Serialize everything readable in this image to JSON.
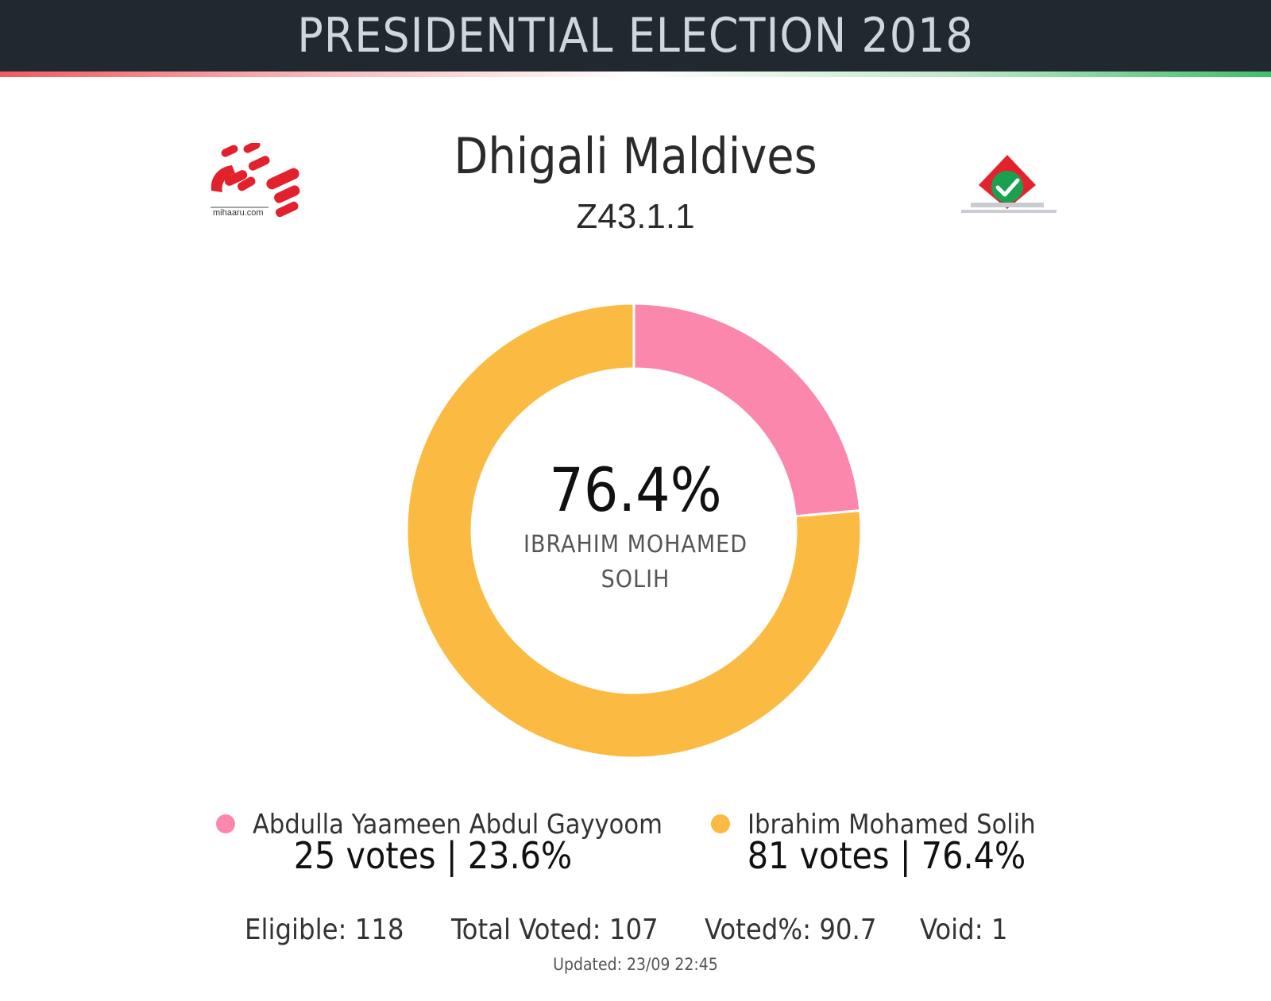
{
  "header": {
    "title": "PRESIDENTIAL ELECTION 2018"
  },
  "location": {
    "name": "Dhigali Maldives",
    "code": "Z43.1.1"
  },
  "logos": {
    "left_text": "mihaaru.com",
    "left_icon": "mihaaru-logo-icon",
    "right_icon": "ballot-box-check-icon"
  },
  "center": {
    "percent": "76.4%",
    "candidate": "IBRAHIM MOHAMED SOLIH"
  },
  "candidates": [
    {
      "name": "Abdulla Yaameen Abdul Gayyoom",
      "votes_text": "25 votes | 23.6%",
      "color": "#fb87ac"
    },
    {
      "name": "Ibrahim Mohamed Solih",
      "votes_text": "81 votes | 76.4%",
      "color": "#fbbb42"
    }
  ],
  "stats": {
    "eligible": "Eligible: 118",
    "total_voted": "Total Voted: 107",
    "voted_pct": "Voted%: 90.7",
    "void": "Void: 1"
  },
  "updated": "Updated:  23/09 22:45",
  "chart_data": {
    "type": "pie",
    "categories": [
      "Abdulla Yaameen Abdul Gayyoom",
      "Ibrahim Mohamed Solih"
    ],
    "values": [
      25,
      81
    ],
    "percentages": [
      23.6,
      76.4
    ],
    "colors": [
      "#fb87ac",
      "#fbbb42"
    ],
    "legend": "bottom"
  }
}
